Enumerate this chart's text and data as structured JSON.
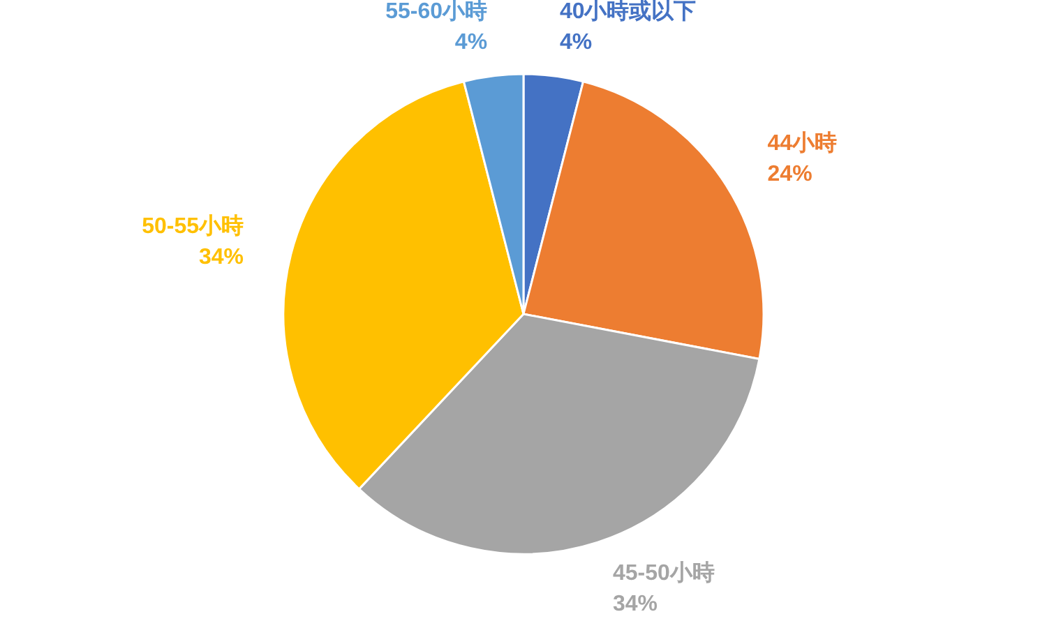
{
  "chart_data": {
    "type": "pie",
    "categories": [
      "40小時或以下",
      "44小時",
      "45-50小時",
      "50-55小時",
      "55-60小時"
    ],
    "values": [
      4,
      24,
      34,
      34,
      4
    ],
    "colors": [
      "#4472c4",
      "#ed7d31",
      "#a5a5a5",
      "#ffc000",
      "#5b9bd5"
    ],
    "value_labels": [
      "4%",
      "24%",
      "34%",
      "34%",
      "4%"
    ]
  }
}
